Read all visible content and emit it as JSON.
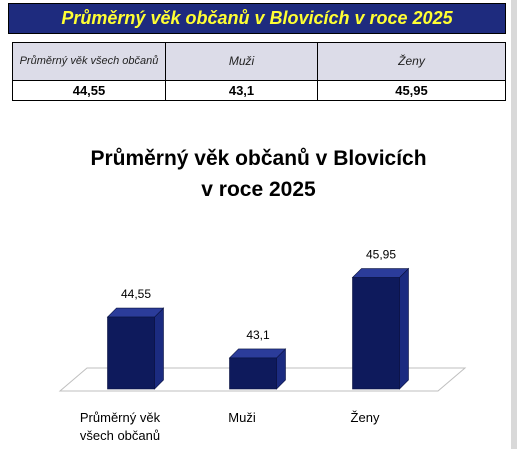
{
  "header": {
    "title": "Průměrný věk občanů v Blovicích v roce 2025"
  },
  "table": {
    "headers": [
      "Průměrný věk všech občanů",
      "Muži",
      "Ženy"
    ],
    "values": [
      "44,55",
      "43,1",
      "45,95"
    ]
  },
  "chart_data": {
    "type": "bar",
    "title_line1": "Průměrný věk občanů v Blovicích",
    "title_line2": "v roce 2025",
    "categories": [
      "Průměrný věk všech občanů",
      "Muži",
      "Ženy"
    ],
    "category_label_lines": [
      [
        "Průměrný věk",
        "všech občanů"
      ],
      [
        "Muži"
      ],
      [
        "Ženy"
      ]
    ],
    "values": [
      44.55,
      43.1,
      45.95
    ],
    "value_labels": [
      "44,55",
      "43,1",
      "45,95"
    ],
    "ylim": [
      42,
      46.5
    ],
    "style": "3d-column",
    "bar_color": "#0e1a5c",
    "grid": false,
    "legend": false
  },
  "colors": {
    "banner_bg": "#1e2b7e",
    "banner_text": "#ffff33",
    "table_header_bg": "#dcdce8",
    "bar_front": "#0e1a5c",
    "bar_side": "#1b2b80",
    "bar_top": "#2b3c9a"
  }
}
